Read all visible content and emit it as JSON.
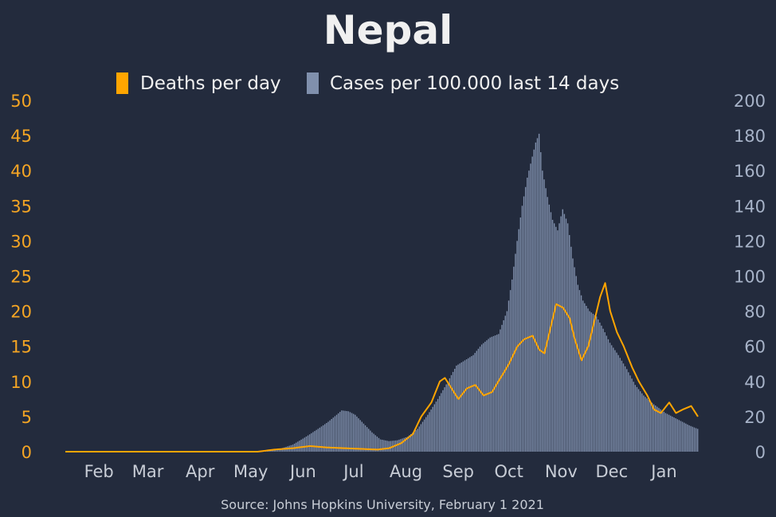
{
  "chart_data": {
    "type": "bar+line",
    "title": "Nepal",
    "source": "Source: Johns Hopkins University, February 1 2021",
    "legend": [
      {
        "label": "Deaths per day",
        "color": "#ffa500",
        "key": "deaths"
      },
      {
        "label": "Cases per 100.000 last 14 days",
        "color": "#8090ad",
        "key": "cases"
      }
    ],
    "x_start": "2020-01-22",
    "x_end": "2021-01-31",
    "months": [
      {
        "label": "Feb",
        "date": "2020-02-01"
      },
      {
        "label": "Mar",
        "date": "2020-03-01"
      },
      {
        "label": "Apr",
        "date": "2020-04-01"
      },
      {
        "label": "May",
        "date": "2020-05-01"
      },
      {
        "label": "Jun",
        "date": "2020-06-01"
      },
      {
        "label": "Jul",
        "date": "2020-07-01"
      },
      {
        "label": "Aug",
        "date": "2020-08-01"
      },
      {
        "label": "Sep",
        "date": "2020-09-01"
      },
      {
        "label": "Oct",
        "date": "2020-10-01"
      },
      {
        "label": "Nov",
        "date": "2020-11-01"
      },
      {
        "label": "Dec",
        "date": "2020-12-01"
      },
      {
        "label": "Jan",
        "date": "2021-01-01"
      }
    ],
    "y_left": {
      "label": "Deaths per day",
      "min": 0,
      "max": 50,
      "ticks": [
        0,
        5,
        10,
        15,
        20,
        25,
        30,
        35,
        40,
        45,
        50
      ]
    },
    "y_right": {
      "label": "Cases per 100.000 last 14 days",
      "min": 0,
      "max": 200,
      "ticks": [
        0,
        20,
        40,
        60,
        80,
        100,
        120,
        140,
        160,
        180,
        200
      ]
    },
    "cases_per_100k_14d": [
      [
        "2020-01-22",
        0
      ],
      [
        "2020-05-10",
        0
      ],
      [
        "2020-05-20",
        0.5
      ],
      [
        "2020-05-28",
        1.5
      ],
      [
        "2020-06-05",
        4
      ],
      [
        "2020-06-12",
        8
      ],
      [
        "2020-06-20",
        13
      ],
      [
        "2020-06-26",
        17
      ],
      [
        "2020-07-01",
        21
      ],
      [
        "2020-07-04",
        23.5
      ],
      [
        "2020-07-08",
        23
      ],
      [
        "2020-07-12",
        21
      ],
      [
        "2020-07-17",
        16
      ],
      [
        "2020-07-22",
        11
      ],
      [
        "2020-07-27",
        7
      ],
      [
        "2020-08-01",
        6
      ],
      [
        "2020-08-06",
        6.5
      ],
      [
        "2020-08-12",
        8.5
      ],
      [
        "2020-08-18",
        13
      ],
      [
        "2020-08-24",
        21
      ],
      [
        "2020-08-30",
        30
      ],
      [
        "2020-09-05",
        40
      ],
      [
        "2020-09-10",
        49
      ],
      [
        "2020-09-15",
        52
      ],
      [
        "2020-09-20",
        55
      ],
      [
        "2020-09-25",
        61
      ],
      [
        "2020-09-30",
        65
      ],
      [
        "2020-10-05",
        67
      ],
      [
        "2020-10-10",
        80
      ],
      [
        "2020-10-13",
        98
      ],
      [
        "2020-10-16",
        120
      ],
      [
        "2020-10-19",
        140
      ],
      [
        "2020-10-22",
        156
      ],
      [
        "2020-10-25",
        168
      ],
      [
        "2020-10-27",
        176
      ],
      [
        "2020-10-29",
        181
      ],
      [
        "2020-10-31",
        160
      ],
      [
        "2020-11-03",
        145
      ],
      [
        "2020-11-06",
        132
      ],
      [
        "2020-11-09",
        126
      ],
      [
        "2020-11-12",
        138
      ],
      [
        "2020-11-15",
        130
      ],
      [
        "2020-11-18",
        110
      ],
      [
        "2020-11-21",
        95
      ],
      [
        "2020-11-24",
        86
      ],
      [
        "2020-11-28",
        80
      ],
      [
        "2020-12-02",
        77
      ],
      [
        "2020-12-06",
        70
      ],
      [
        "2020-12-10",
        62
      ],
      [
        "2020-12-15",
        55
      ],
      [
        "2020-12-20",
        47
      ],
      [
        "2020-12-25",
        38
      ],
      [
        "2020-12-30",
        32
      ],
      [
        "2021-01-05",
        27
      ],
      [
        "2021-01-12",
        22
      ],
      [
        "2021-01-20",
        18
      ],
      [
        "2021-01-26",
        15
      ],
      [
        "2021-01-31",
        13
      ]
    ],
    "deaths_per_day": [
      [
        "2020-01-22",
        0
      ],
      [
        "2020-05-15",
        0
      ],
      [
        "2020-05-25",
        0.3
      ],
      [
        "2020-06-05",
        0.5
      ],
      [
        "2020-06-15",
        0.8
      ],
      [
        "2020-06-25",
        0.6
      ],
      [
        "2020-07-05",
        0.5
      ],
      [
        "2020-07-15",
        0.4
      ],
      [
        "2020-07-25",
        0.3
      ],
      [
        "2020-08-01",
        0.5
      ],
      [
        "2020-08-08",
        1.2
      ],
      [
        "2020-08-15",
        2.5
      ],
      [
        "2020-08-20",
        5
      ],
      [
        "2020-08-26",
        7
      ],
      [
        "2020-08-31",
        10
      ],
      [
        "2020-09-03",
        10.5
      ],
      [
        "2020-09-07",
        9
      ],
      [
        "2020-09-11",
        7.5
      ],
      [
        "2020-09-16",
        9
      ],
      [
        "2020-09-21",
        9.5
      ],
      [
        "2020-09-26",
        8
      ],
      [
        "2020-10-01",
        8.5
      ],
      [
        "2020-10-06",
        10.5
      ],
      [
        "2020-10-11",
        12.5
      ],
      [
        "2020-10-16",
        15
      ],
      [
        "2020-10-20",
        16
      ],
      [
        "2020-10-25",
        16.5
      ],
      [
        "2020-10-29",
        14.5
      ],
      [
        "2020-11-01",
        14
      ],
      [
        "2020-11-05",
        18
      ],
      [
        "2020-11-08",
        21
      ],
      [
        "2020-11-12",
        20.5
      ],
      [
        "2020-11-16",
        19
      ],
      [
        "2020-11-19",
        16
      ],
      [
        "2020-11-23",
        13
      ],
      [
        "2020-11-27",
        15
      ],
      [
        "2020-12-01",
        19
      ],
      [
        "2020-12-04",
        22
      ],
      [
        "2020-12-07",
        24
      ],
      [
        "2020-12-10",
        20
      ],
      [
        "2020-12-14",
        17
      ],
      [
        "2020-12-18",
        15
      ],
      [
        "2020-12-23",
        12
      ],
      [
        "2020-12-27",
        10
      ],
      [
        "2021-01-01",
        8
      ],
      [
        "2021-01-05",
        6
      ],
      [
        "2021-01-09",
        5.5
      ],
      [
        "2021-01-14",
        7
      ],
      [
        "2021-01-18",
        5.5
      ],
      [
        "2021-01-22",
        6
      ],
      [
        "2021-01-27",
        6.5
      ],
      [
        "2021-01-31",
        5
      ]
    ]
  }
}
